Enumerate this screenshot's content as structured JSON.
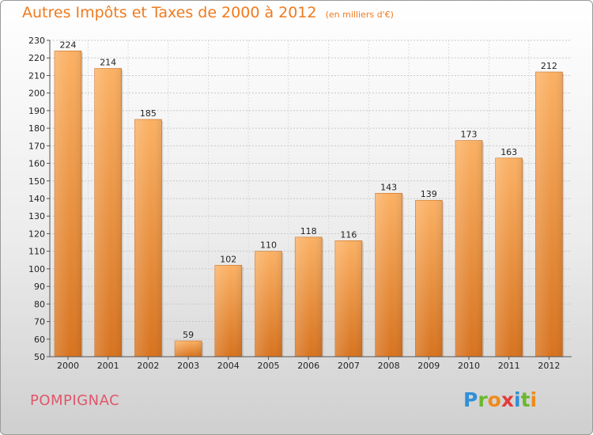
{
  "title": "Autres Impôts et Taxes de 2000 à 2012",
  "subtitle": "(en milliers d'€)",
  "place": "POMPIGNAC",
  "logo": {
    "letters": [
      "P",
      "r",
      "o",
      "x",
      "i",
      "t",
      "i"
    ],
    "colors": [
      "#2f8fd8",
      "#6ab830",
      "#f08a1c",
      "#e23c3c",
      "#2f8fd8",
      "#6ab830",
      "#f08a1c"
    ]
  },
  "colors": {
    "bar": "#f0882e",
    "bar_light": "#fbb469",
    "bar_dark": "#c96a1a",
    "title": "#f07a1e",
    "place": "#e0566b"
  },
  "chart_data": {
    "type": "bar",
    "categories": [
      "2000",
      "2001",
      "2002",
      "2003",
      "2004",
      "2005",
      "2006",
      "2007",
      "2008",
      "2009",
      "2010",
      "2011",
      "2012"
    ],
    "values": [
      224,
      214,
      185,
      59,
      102,
      110,
      118,
      116,
      143,
      139,
      173,
      163,
      212
    ],
    "yticks": [
      50,
      60,
      70,
      80,
      90,
      100,
      110,
      120,
      130,
      140,
      150,
      160,
      170,
      180,
      190,
      200,
      210,
      220,
      230
    ],
    "ylim": [
      50,
      230
    ],
    "grid": true,
    "xlabel": "",
    "ylabel": ""
  }
}
